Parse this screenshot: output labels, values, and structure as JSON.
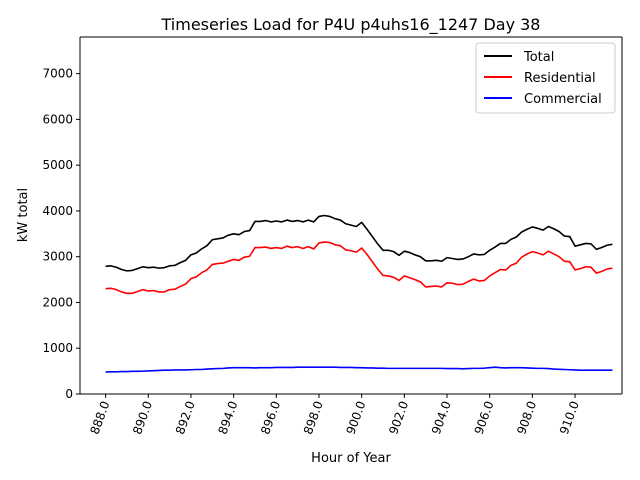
{
  "chart_data": {
    "type": "line",
    "title": "Timeseries Load for P4U p4uhs16_1247  Day 38",
    "xlabel": "Hour of Year",
    "ylabel": "kW total",
    "xlim": [
      886.8,
      912.2
    ],
    "ylim": [
      0,
      7800
    ],
    "x_ticks": [
      888,
      890,
      892,
      894,
      896,
      898,
      900,
      902,
      904,
      906,
      908,
      910
    ],
    "x_tick_labels": [
      "888.0",
      "890.0",
      "892.0",
      "894.0",
      "896.0",
      "898.0",
      "900.0",
      "902.0",
      "904.0",
      "906.0",
      "908.0",
      "910.0"
    ],
    "y_ticks": [
      0,
      1000,
      2000,
      3000,
      4000,
      5000,
      6000,
      7000
    ],
    "y_tick_labels": [
      "0",
      "1000",
      "2000",
      "3000",
      "4000",
      "5000",
      "6000",
      "7000"
    ],
    "grid": false,
    "legend_position": "top-right",
    "x_start": 888,
    "x_step": 0.25,
    "series": [
      {
        "name": "Total",
        "color": "#000000",
        "values": [
          2790,
          2800,
          2770,
          2720,
          2690,
          2700,
          2740,
          2780,
          2760,
          2770,
          2750,
          2760,
          2800,
          2810,
          2870,
          2920,
          3040,
          3080,
          3170,
          3240,
          3370,
          3390,
          3410,
          3470,
          3500,
          3480,
          3550,
          3570,
          3770,
          3770,
          3790,
          3760,
          3780,
          3760,
          3800,
          3770,
          3790,
          3760,
          3800,
          3760,
          3880,
          3900,
          3880,
          3830,
          3800,
          3720,
          3690,
          3660,
          3750,
          3600,
          3440,
          3280,
          3140,
          3140,
          3110,
          3030,
          3120,
          3090,
          3040,
          3000,
          2910,
          2910,
          2920,
          2900,
          2980,
          2960,
          2940,
          2950,
          3000,
          3060,
          3040,
          3050,
          3140,
          3210,
          3290,
          3290,
          3380,
          3430,
          3540,
          3600,
          3650,
          3620,
          3580,
          3660,
          3610,
          3550,
          3450,
          3440,
          3230,
          3260,
          3290,
          3280,
          3160,
          3200,
          3250,
          3270
        ]
      },
      {
        "name": "Residential",
        "color": "#ff0000",
        "values": [
          2300,
          2310,
          2280,
          2230,
          2200,
          2200,
          2240,
          2280,
          2250,
          2260,
          2230,
          2230,
          2280,
          2290,
          2350,
          2400,
          2520,
          2560,
          2650,
          2710,
          2830,
          2850,
          2860,
          2900,
          2940,
          2920,
          2990,
          3010,
          3200,
          3200,
          3210,
          3180,
          3200,
          3180,
          3230,
          3200,
          3220,
          3180,
          3220,
          3170,
          3300,
          3320,
          3310,
          3260,
          3240,
          3150,
          3130,
          3100,
          3190,
          3050,
          2890,
          2730,
          2590,
          2580,
          2550,
          2480,
          2580,
          2540,
          2500,
          2450,
          2340,
          2350,
          2360,
          2340,
          2430,
          2420,
          2390,
          2400,
          2460,
          2510,
          2470,
          2480,
          2580,
          2650,
          2720,
          2710,
          2810,
          2860,
          2990,
          3060,
          3110,
          3080,
          3040,
          3120,
          3060,
          3000,
          2900,
          2890,
          2710,
          2740,
          2780,
          2770,
          2640,
          2680,
          2730,
          2750
        ]
      },
      {
        "name": "Commercial",
        "color": "#0000ff",
        "values": [
          480,
          485,
          485,
          490,
          490,
          495,
          495,
          500,
          505,
          510,
          515,
          520,
          520,
          525,
          525,
          525,
          530,
          535,
          535,
          545,
          550,
          555,
          560,
          570,
          575,
          575,
          575,
          575,
          570,
          575,
          575,
          575,
          580,
          580,
          580,
          580,
          585,
          585,
          585,
          585,
          585,
          585,
          585,
          585,
          580,
          580,
          580,
          575,
          575,
          570,
          570,
          565,
          565,
          560,
          560,
          560,
          560,
          560,
          560,
          560,
          560,
          560,
          560,
          560,
          555,
          555,
          555,
          550,
          555,
          560,
          560,
          565,
          575,
          585,
          575,
          570,
          575,
          575,
          575,
          570,
          565,
          560,
          560,
          555,
          545,
          540,
          535,
          530,
          525,
          520,
          520,
          520,
          520,
          520,
          520,
          520
        ]
      }
    ]
  }
}
